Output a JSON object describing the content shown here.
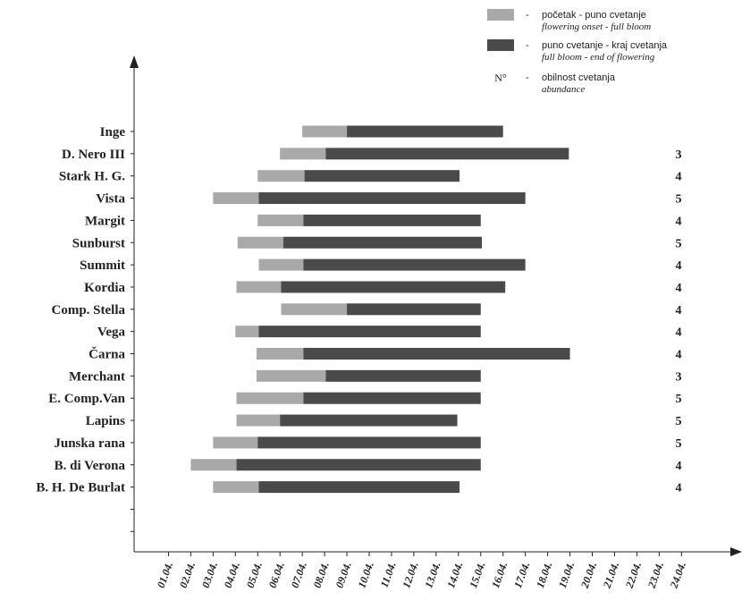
{
  "chart_data": {
    "type": "bar",
    "orientation": "horizontal-gantt",
    "title": "",
    "x_ticks": [
      "01.04.",
      "02.04.",
      "03.04.",
      "04.04.",
      "05.04.",
      "06.04.",
      "07.04.",
      "08.04.",
      "09.04.",
      "10.04.",
      "11.04.",
      "12.04.",
      "13.04.",
      "14.04.",
      "15.04.",
      "16.04.",
      "17.04.",
      "18.04.",
      "19.04.",
      "20.04.",
      "21.04.",
      "22.04.",
      "23.04.",
      "24.04."
    ],
    "categories": [
      "Inge",
      "D. Nero III",
      "Stark H. G.",
      "Vista",
      "Margit",
      "Sunburst",
      "Summit",
      "Kordia",
      "Comp. Stella",
      "Vega",
      "Čarna",
      "Merchant",
      "E. Comp.Van",
      "Lapins",
      "Junska rana",
      "B. di Verona",
      "B. H. De Burlat"
    ],
    "onset": [
      7.0,
      6.0,
      5.0,
      3.0,
      5.0,
      4.1,
      5.05,
      4.05,
      6.05,
      4.0,
      4.95,
      4.95,
      4.05,
      4.05,
      3.0,
      2.0,
      3.0
    ],
    "full_bloom": [
      9.0,
      8.05,
      7.1,
      5.05,
      7.05,
      6.15,
      7.05,
      6.05,
      9.0,
      5.05,
      7.05,
      8.05,
      7.05,
      6.0,
      5.0,
      4.05,
      5.05
    ],
    "end": [
      16.0,
      18.95,
      14.05,
      17.0,
      15.0,
      15.05,
      17.0,
      16.1,
      15.0,
      15.0,
      19.0,
      15.0,
      15.0,
      13.95,
      15.0,
      15.0,
      14.05
    ],
    "abundance": [
      "",
      "3",
      "4",
      "5",
      "4",
      "5",
      "4",
      "4",
      "4",
      "4",
      "4",
      "3",
      "5",
      "5",
      "5",
      "4",
      "4"
    ],
    "xlim": [
      0,
      25
    ],
    "series": [
      {
        "name": "početak - puno cvetanje / flowering onset - full bloom",
        "color": "#a9a9a9"
      },
      {
        "name": "puno cvetanje - kraj cvetanja / full bloom - end of flowering",
        "color": "#4a4a4a"
      }
    ],
    "legend": {
      "placement": "top-right",
      "items": [
        {
          "dash": "-",
          "line1": "početak - puno cvetanje",
          "line2": "flowering onset - full bloom",
          "color": "#a9a9a9"
        },
        {
          "dash": "-",
          "line1": "puno cvetanje - kraj cvetanja",
          "line2": "full bloom - end of flowering",
          "color": "#4a4a4a"
        },
        {
          "symbol": "N°",
          "dash": "-",
          "line1": "obilnost cvetanja",
          "line2": "abundance"
        }
      ]
    }
  }
}
